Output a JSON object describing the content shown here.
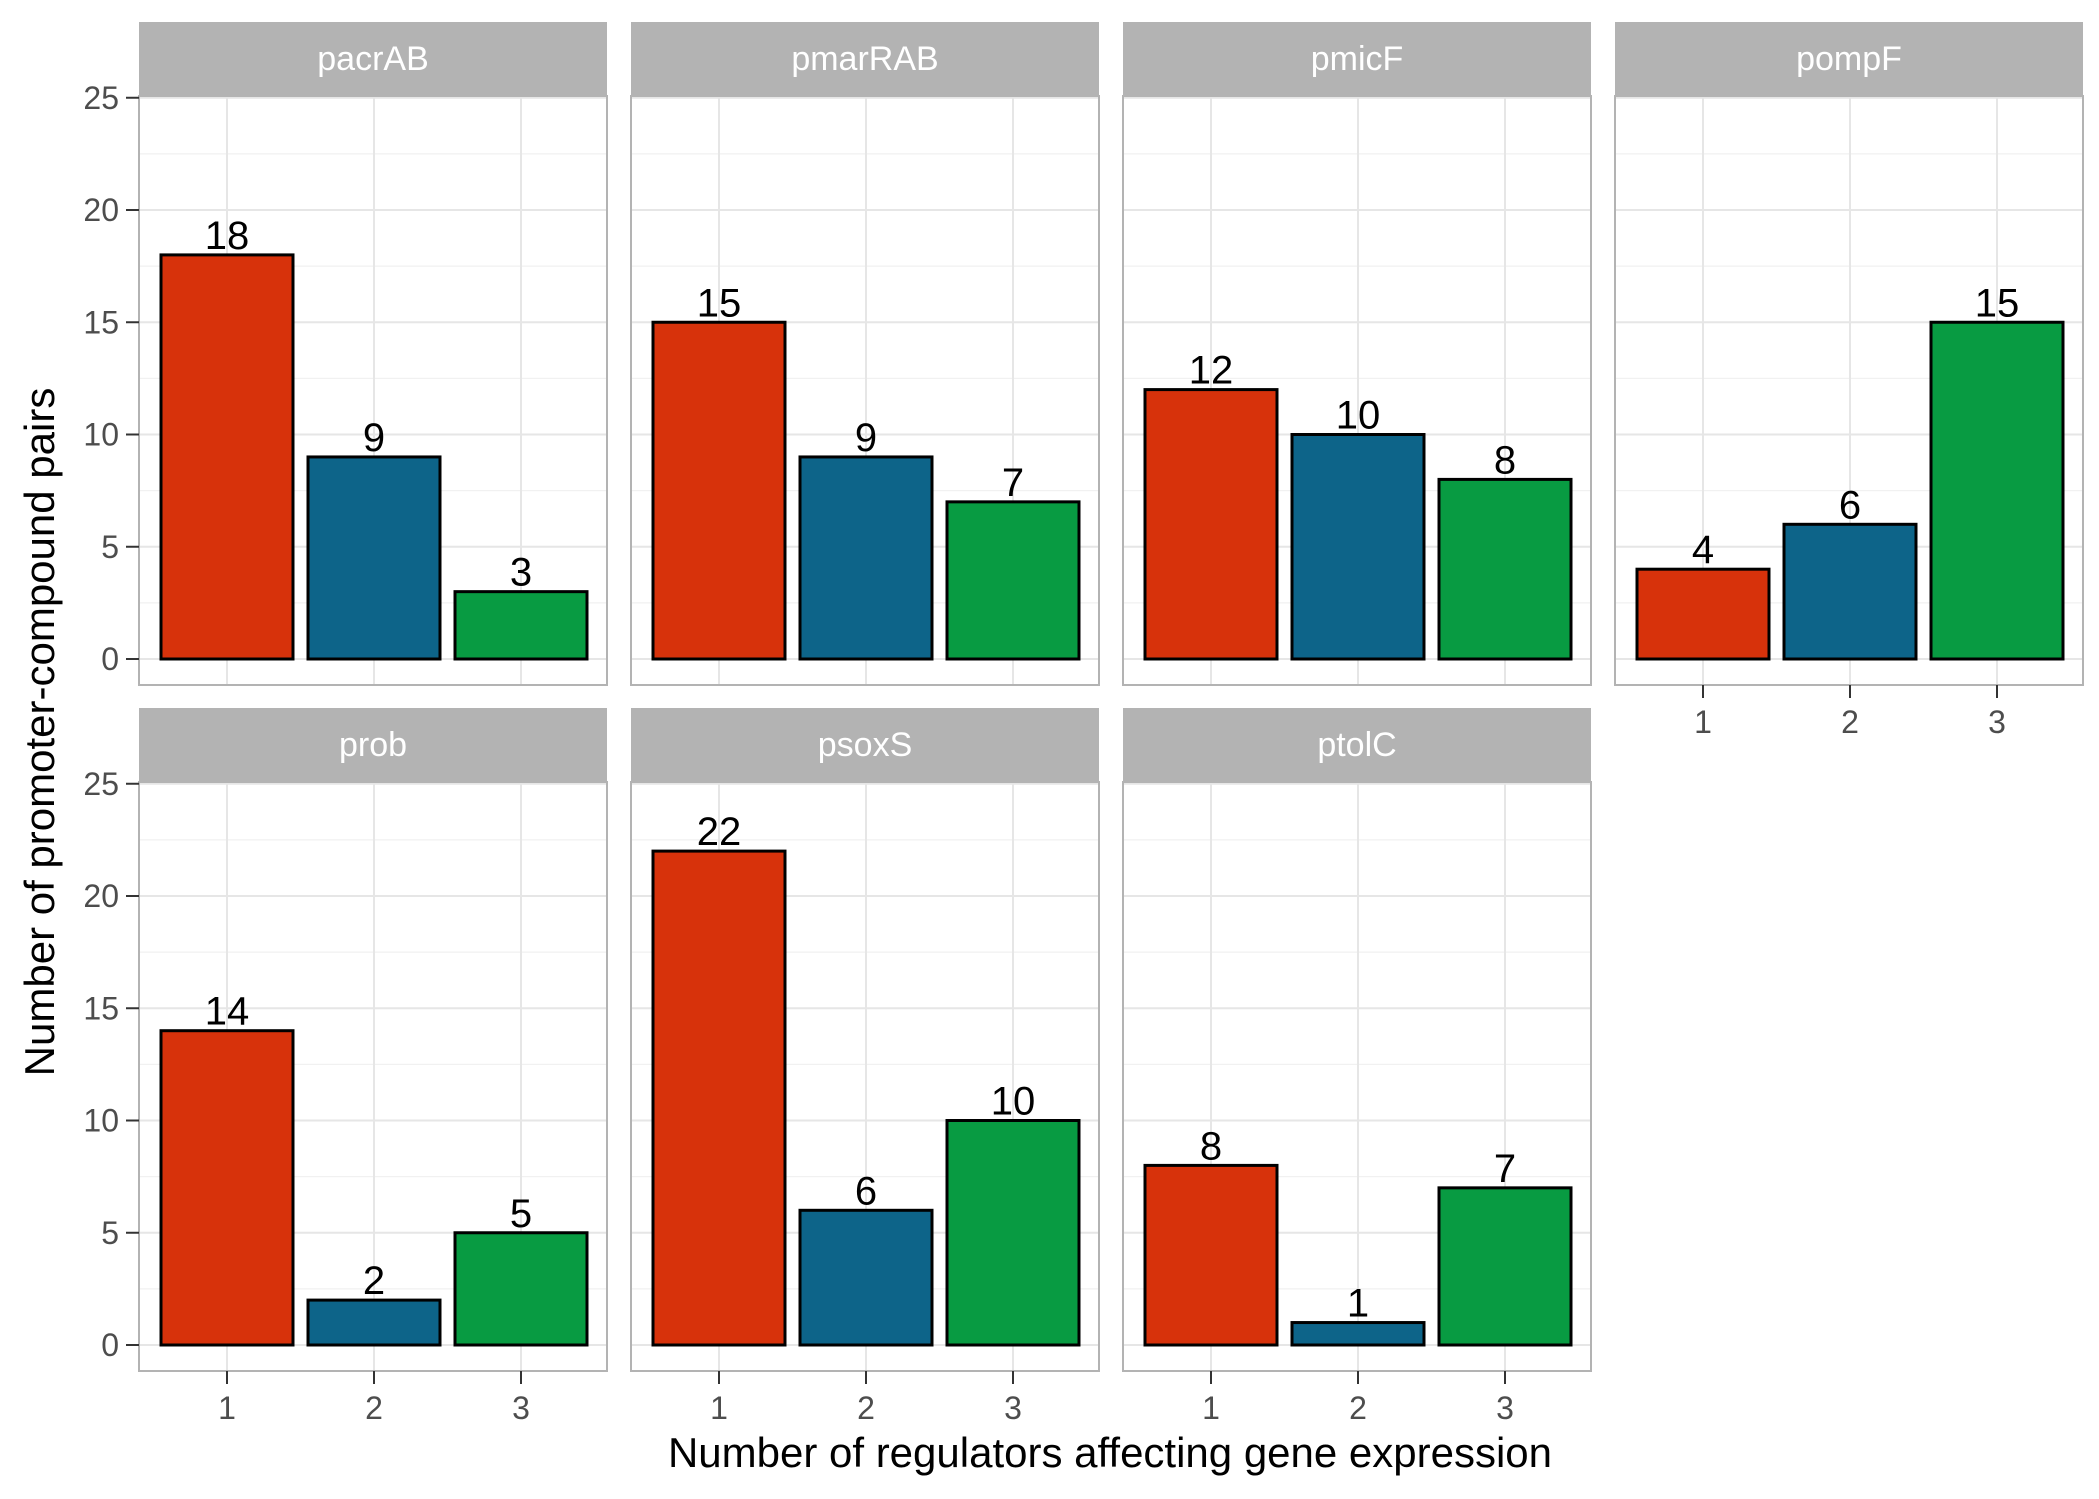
{
  "chart_data": {
    "type": "bar",
    "layout": "facet-grid",
    "xlabel": "Number of regulators affecting gene expression",
    "ylabel": "Number of promoter-compound pairs",
    "categories": [
      "1",
      "2",
      "3"
    ],
    "ylim": [
      0,
      25
    ],
    "yticks": [
      "0",
      "5",
      "10",
      "15",
      "20",
      "25"
    ],
    "grid": true,
    "colors": {
      "1": "#d7320b",
      "2": "#0d6489",
      "3": "#089b42",
      "strip": "#b3b3b3",
      "gridline": "#e6e6e6",
      "panel_border": "#b3b3b3"
    },
    "panels": [
      {
        "name": "pacrAB",
        "values": [
          18,
          9,
          3
        ]
      },
      {
        "name": "pmarRAB",
        "values": [
          15,
          9,
          7
        ]
      },
      {
        "name": "pmicF",
        "values": [
          12,
          10,
          8
        ]
      },
      {
        "name": "pompF",
        "values": [
          4,
          6,
          15
        ]
      },
      {
        "name": "prob",
        "values": [
          14,
          2,
          5
        ]
      },
      {
        "name": "psoxS",
        "values": [
          22,
          6,
          10
        ]
      },
      {
        "name": "ptolC",
        "values": [
          8,
          1,
          7
        ]
      }
    ]
  }
}
